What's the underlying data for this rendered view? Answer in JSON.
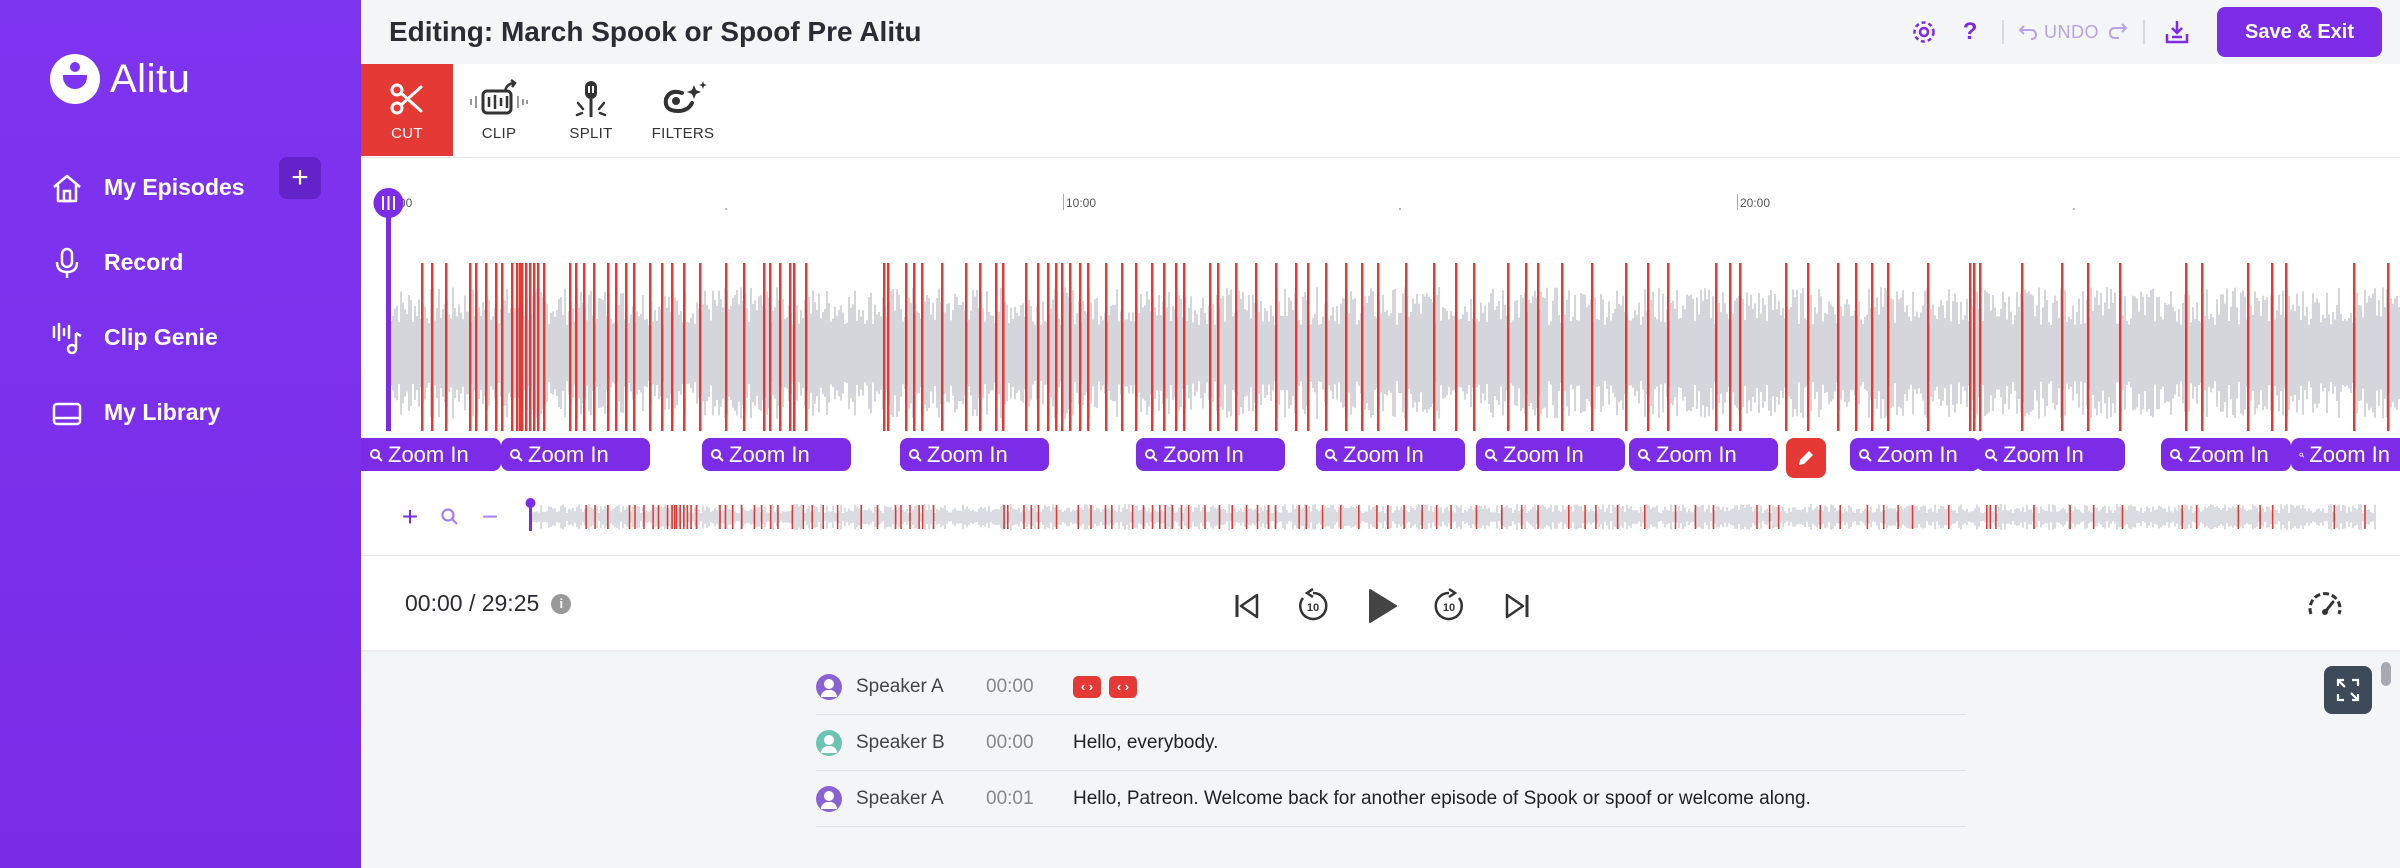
{
  "app": {
    "name": "Alitu"
  },
  "sidebar": {
    "items": [
      {
        "label": "My Episodes",
        "icon": "home-icon"
      },
      {
        "label": "Record",
        "icon": "microphone-icon"
      },
      {
        "label": "Clip Genie",
        "icon": "clip-genie-icon"
      },
      {
        "label": "My Library",
        "icon": "library-icon"
      }
    ],
    "add_label": "+"
  },
  "header": {
    "title": "Editing: March Spook or Spoof Pre Alitu",
    "help_label": "?",
    "undo_label": "UNDO",
    "save_label": "Save & Exit"
  },
  "toolbar": {
    "tools": [
      {
        "label": "CUT",
        "icon": "scissors-icon",
        "active": true
      },
      {
        "label": "CLIP",
        "icon": "clip-share-icon",
        "active": false
      },
      {
        "label": "SPLIT",
        "icon": "split-icon",
        "active": false
      },
      {
        "label": "FILTERS",
        "icon": "filters-icon",
        "active": false
      }
    ]
  },
  "timeline": {
    "ticks": [
      "00",
      "10:00",
      "20:00"
    ],
    "zoom_in_label": "Zoom In",
    "zoom_plus": "+",
    "zoom_minus": "−"
  },
  "player": {
    "time": "00:00 / 29:25",
    "info": "i",
    "skip_back_seconds": "10",
    "skip_forward_seconds": "10"
  },
  "transcript": {
    "rows": [
      {
        "speaker": "Speaker A",
        "time": "00:00",
        "text": "",
        "avatar_color": "#8a63d2"
      },
      {
        "speaker": "Speaker B",
        "time": "00:00",
        "text": "Hello, everybody.",
        "avatar_color": "#6cc4b4"
      },
      {
        "speaker": "Speaker A",
        "time": "00:01",
        "text": "Hello, Patreon. Welcome back for another episode of Spook or spoof or welcome along.",
        "avatar_color": "#8a63d2"
      }
    ],
    "code_tag": "‹ ›"
  },
  "colors": {
    "brand": "#7c2be6",
    "cut_marker": "#e53935",
    "waveform": "#c9ccd4"
  }
}
